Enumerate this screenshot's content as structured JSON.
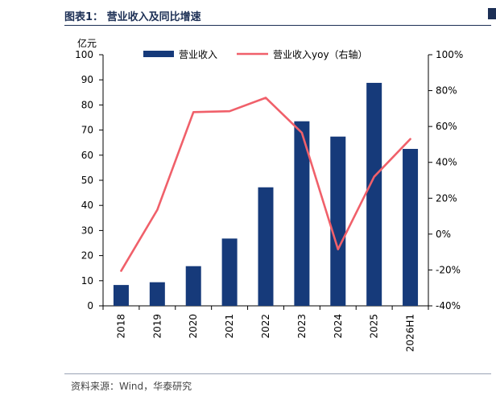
{
  "header": {
    "figure_title": "图表1：  营业收入及同比增速"
  },
  "footer": {
    "source": "资料来源：Wind，华泰研究"
  },
  "colors": {
    "bar": "#163a7a",
    "line": "#f0606a",
    "title": "#1c2f55"
  },
  "chart_data": {
    "type": "bar+line",
    "categories": [
      "2018",
      "2019",
      "2020",
      "2021",
      "2022",
      "2023",
      "2024",
      "2025",
      "2026H1"
    ],
    "left_axis": {
      "unit": "亿元",
      "range": [
        0,
        100
      ],
      "ticks": [
        "0",
        "10",
        "20",
        "30",
        "40",
        "50",
        "60",
        "70",
        "80",
        "90",
        "100"
      ]
    },
    "right_axis": {
      "range": [
        -40,
        100
      ],
      "ticks": [
        "-40%",
        "-20%",
        "0%",
        "20%",
        "40%",
        "60%",
        "80%",
        "100%"
      ]
    },
    "series": [
      {
        "name": "营业收入",
        "type": "bar",
        "axis": "left",
        "values": [
          8.3,
          9.4,
          15.8,
          26.8,
          47.2,
          73.5,
          67.4,
          88.8,
          62.5
        ]
      },
      {
        "name": "营业收入yoy（右轴）",
        "type": "line",
        "axis": "right",
        "values": [
          -20.5,
          13.5,
          68.0,
          68.5,
          76.0,
          56.5,
          -8.5,
          32.0,
          53.0
        ]
      }
    ],
    "legend_position": "top",
    "grid": false
  }
}
